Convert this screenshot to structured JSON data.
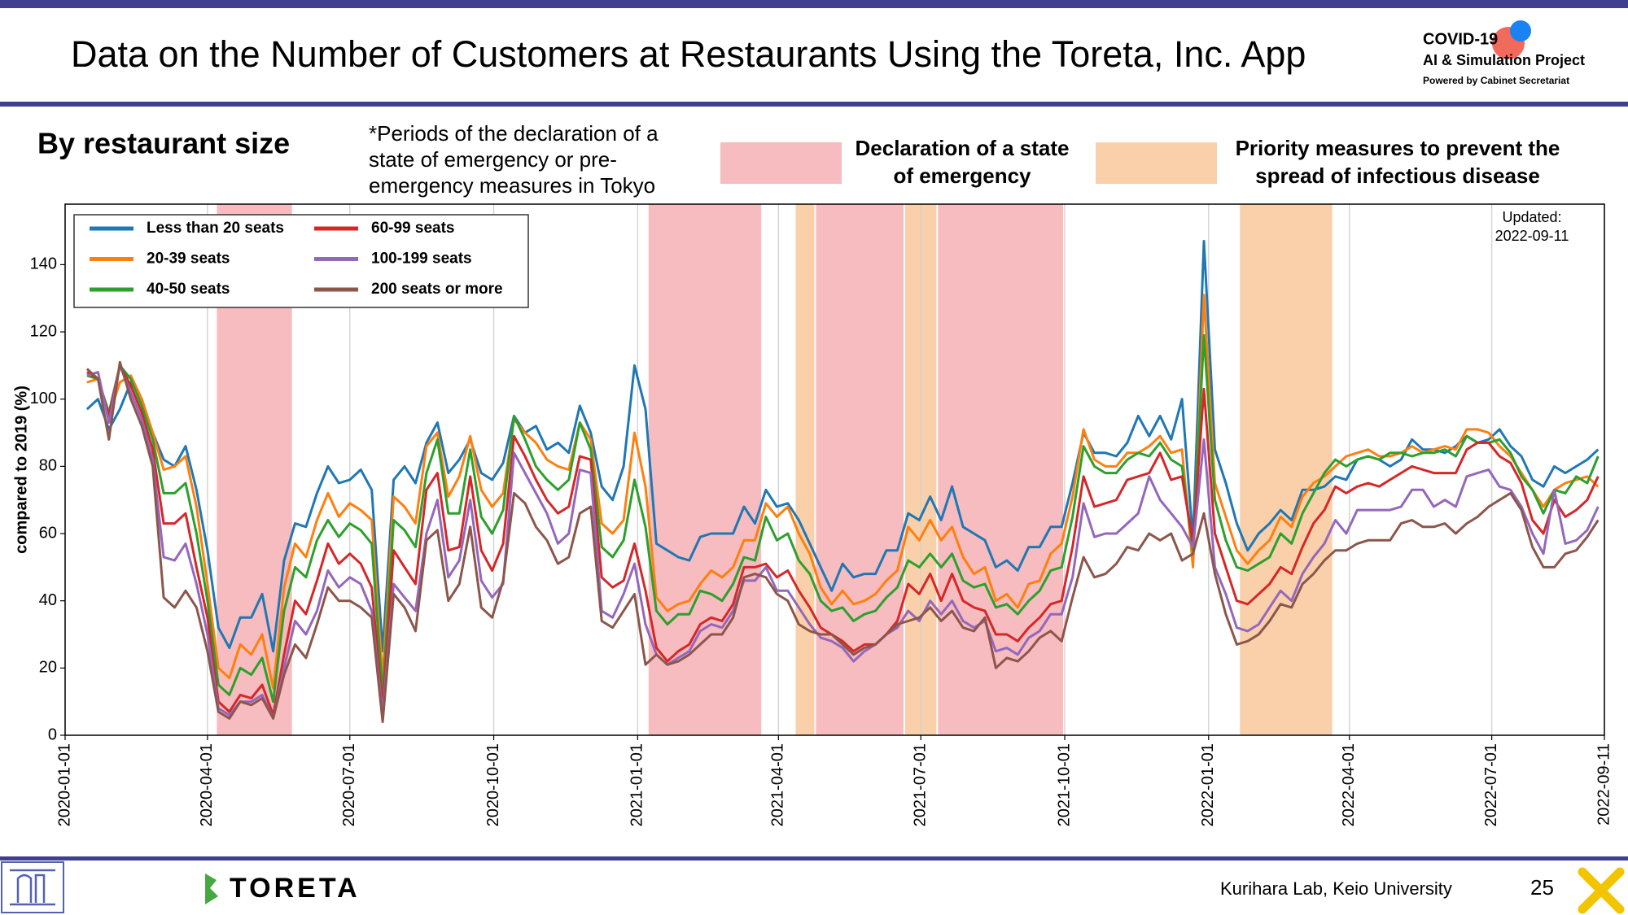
{
  "header": {
    "title": "Data on the Number of Customers at Restaurants Using the Toreta, Inc. App",
    "logo_lines": [
      "COVID-19",
      "AI & Simulation Project",
      "Powered by Cabinet Secretariat"
    ],
    "section": "By restaurant size",
    "note_lines": [
      "*Periods of the declaration of a",
      "state of emergency or pre-",
      "emergency measures in Tokyo"
    ]
  },
  "chart_data": {
    "type": "line",
    "ylabel": "compared to 2019 (%)",
    "updated_lines": [
      "Updated:",
      "2022-09-11"
    ],
    "legend": "upper left",
    "grid": "x",
    "xlim": [
      "2020-01-01",
      "2022-09-11"
    ],
    "xticks": [
      "2020-01-01",
      "2020-04-01",
      "2020-07-01",
      "2020-10-01",
      "2021-01-01",
      "2021-04-01",
      "2021-07-01",
      "2021-10-01",
      "2022-01-01",
      "2022-04-01",
      "2022-07-01",
      "2022-09-11"
    ],
    "ylim": [
      0,
      158
    ],
    "yticks": [
      0,
      20,
      40,
      60,
      80,
      100,
      120,
      140
    ],
    "bands": [
      {
        "name_lines": [
          "Declaration of a state",
          "of emergency"
        ],
        "color": "#f6bcbf",
        "periods": [
          [
            "2020-04-07",
            "2020-05-25"
          ],
          [
            "2021-01-08",
            "2021-03-21"
          ],
          [
            "2021-04-25",
            "2021-06-20"
          ],
          [
            "2021-07-12",
            "2021-09-30"
          ]
        ]
      },
      {
        "name_lines": [
          "Priority measures to prevent the",
          "spread of infectious disease"
        ],
        "color": "#f9d0aa",
        "periods": [
          [
            "2021-04-12",
            "2021-04-24"
          ],
          [
            "2021-06-21",
            "2021-07-11"
          ],
          [
            "2022-01-21",
            "2022-03-21"
          ]
        ]
      }
    ],
    "x": [
      "2020-01-15",
      "2020-01-22",
      "2020-01-29",
      "2020-02-05",
      "2020-02-12",
      "2020-02-19",
      "2020-02-26",
      "2020-03-04",
      "2020-03-11",
      "2020-03-18",
      "2020-03-25",
      "2020-04-01",
      "2020-04-08",
      "2020-04-15",
      "2020-04-22",
      "2020-04-29",
      "2020-05-06",
      "2020-05-13",
      "2020-05-20",
      "2020-05-27",
      "2020-06-03",
      "2020-06-10",
      "2020-06-17",
      "2020-06-24",
      "2020-07-01",
      "2020-07-08",
      "2020-07-15",
      "2020-07-22",
      "2020-07-29",
      "2020-08-05",
      "2020-08-12",
      "2020-08-19",
      "2020-08-26",
      "2020-09-02",
      "2020-09-09",
      "2020-09-16",
      "2020-09-23",
      "2020-09-30",
      "2020-10-07",
      "2020-10-14",
      "2020-10-21",
      "2020-10-28",
      "2020-11-04",
      "2020-11-11",
      "2020-11-18",
      "2020-11-25",
      "2020-12-02",
      "2020-12-09",
      "2020-12-16",
      "2020-12-23",
      "2020-12-30",
      "2021-01-06",
      "2021-01-13",
      "2021-01-20",
      "2021-01-27",
      "2021-02-03",
      "2021-02-10",
      "2021-02-17",
      "2021-02-24",
      "2021-03-03",
      "2021-03-10",
      "2021-03-17",
      "2021-03-24",
      "2021-03-31",
      "2021-04-07",
      "2021-04-14",
      "2021-04-21",
      "2021-04-28",
      "2021-05-05",
      "2021-05-12",
      "2021-05-19",
      "2021-05-26",
      "2021-06-02",
      "2021-06-09",
      "2021-06-16",
      "2021-06-23",
      "2021-06-30",
      "2021-07-07",
      "2021-07-14",
      "2021-07-21",
      "2021-07-28",
      "2021-08-04",
      "2021-08-11",
      "2021-08-18",
      "2021-08-25",
      "2021-09-01",
      "2021-09-08",
      "2021-09-15",
      "2021-09-22",
      "2021-09-29",
      "2021-10-06",
      "2021-10-13",
      "2021-10-20",
      "2021-10-27",
      "2021-11-03",
      "2021-11-10",
      "2021-11-17",
      "2021-11-24",
      "2021-12-01",
      "2021-12-08",
      "2021-12-15",
      "2021-12-22",
      "2021-12-29",
      "2022-01-05",
      "2022-01-12",
      "2022-01-19",
      "2022-01-26",
      "2022-02-02",
      "2022-02-09",
      "2022-02-16",
      "2022-02-23",
      "2022-03-02",
      "2022-03-09",
      "2022-03-16",
      "2022-03-23",
      "2022-03-30",
      "2022-04-06",
      "2022-04-13",
      "2022-04-20",
      "2022-04-27",
      "2022-05-04",
      "2022-05-11",
      "2022-05-18",
      "2022-05-25",
      "2022-06-01",
      "2022-06-08",
      "2022-06-15",
      "2022-06-22",
      "2022-06-29",
      "2022-07-06",
      "2022-07-13",
      "2022-07-20",
      "2022-07-27",
      "2022-08-03",
      "2022-08-10",
      "2022-08-17",
      "2022-08-24",
      "2022-08-31",
      "2022-09-07"
    ],
    "series": [
      {
        "name": "Less than 20 seats",
        "color": "#1f77b4",
        "values": [
          97,
          100,
          91,
          97,
          105,
          100,
          90,
          82,
          80,
          86,
          73,
          55,
          32,
          26,
          35,
          35,
          42,
          25,
          52,
          63,
          62,
          72,
          80,
          75,
          76,
          79,
          73,
          25,
          76,
          80,
          75,
          87,
          93,
          78,
          82,
          88,
          78,
          76,
          81,
          95,
          90,
          92,
          85,
          87,
          84,
          98,
          90,
          74,
          70,
          80,
          110,
          97,
          57,
          55,
          53,
          52,
          59,
          60,
          60,
          60,
          68,
          63,
          73,
          68,
          69,
          64,
          57,
          50,
          43,
          51,
          47,
          48,
          48,
          55,
          55,
          66,
          64,
          71,
          64,
          74,
          62,
          60,
          58,
          50,
          52,
          49,
          56,
          56,
          62,
          62,
          75,
          90,
          84,
          84,
          83,
          87,
          95,
          89,
          95,
          88,
          100,
          58,
          147,
          85,
          75,
          63,
          55,
          60,
          63,
          67,
          64,
          73,
          73,
          74,
          77,
          76,
          82,
          83,
          82,
          80,
          82,
          88,
          85,
          85,
          84,
          86,
          89,
          87,
          88,
          91,
          86,
          83,
          76,
          74,
          80,
          78,
          80,
          82,
          85
        ]
      },
      {
        "name": "20-39 seats",
        "color": "#ff7f0e",
        "values": [
          105,
          106,
          95,
          105,
          107,
          100,
          90,
          79,
          80,
          83,
          68,
          45,
          20,
          17,
          27,
          24,
          30,
          14,
          44,
          57,
          53,
          64,
          72,
          65,
          69,
          67,
          64,
          17,
          71,
          68,
          63,
          86,
          90,
          71,
          77,
          89,
          73,
          68,
          72,
          94,
          90,
          87,
          82,
          80,
          79,
          93,
          88,
          63,
          60,
          64,
          90,
          74,
          41,
          37,
          39,
          40,
          45,
          49,
          47,
          50,
          58,
          58,
          69,
          65,
          68,
          60,
          54,
          44,
          39,
          43,
          39,
          40,
          42,
          46,
          49,
          62,
          58,
          64,
          58,
          62,
          53,
          48,
          50,
          40,
          42,
          38,
          45,
          46,
          54,
          57,
          71,
          91,
          82,
          80,
          80,
          84,
          84,
          86,
          89,
          84,
          85,
          50,
          131,
          75,
          65,
          55,
          51,
          55,
          58,
          65,
          62,
          71,
          75,
          77,
          80,
          83,
          84,
          85,
          83,
          83,
          84,
          86,
          84,
          85,
          86,
          85,
          91,
          91,
          90,
          86,
          83,
          78,
          73,
          68,
          73,
          75,
          76,
          77,
          74
        ]
      },
      {
        "name": "40-50 seats",
        "color": "#2ca02c",
        "values": [
          107,
          106,
          96,
          110,
          106,
          98,
          88,
          72,
          72,
          75,
          60,
          40,
          15,
          12,
          20,
          18,
          23,
          10,
          37,
          50,
          47,
          58,
          64,
          59,
          63,
          61,
          57,
          12,
          64,
          61,
          56,
          78,
          88,
          66,
          66,
          85,
          65,
          60,
          67,
          95,
          88,
          80,
          76,
          73,
          76,
          93,
          85,
          56,
          53,
          58,
          76,
          62,
          37,
          33,
          36,
          36,
          43,
          42,
          40,
          45,
          53,
          52,
          65,
          58,
          60,
          52,
          48,
          40,
          37,
          38,
          34,
          36,
          37,
          41,
          44,
          52,
          50,
          54,
          50,
          54,
          46,
          44,
          45,
          38,
          39,
          36,
          40,
          43,
          49,
          50,
          65,
          86,
          80,
          78,
          78,
          82,
          84,
          83,
          87,
          82,
          80,
          55,
          119,
          70,
          58,
          50,
          49,
          51,
          53,
          60,
          57,
          66,
          72,
          78,
          82,
          80,
          82,
          83,
          82,
          84,
          84,
          83,
          84,
          84,
          85,
          83,
          89,
          87,
          87,
          88,
          84,
          77,
          73,
          66,
          73,
          72,
          77,
          75,
          83
        ]
      },
      {
        "name": "60-99 seats",
        "color": "#d62728",
        "values": [
          108,
          106,
          95,
          110,
          104,
          96,
          85,
          63,
          63,
          66,
          50,
          35,
          10,
          7,
          12,
          11,
          15,
          6,
          24,
          40,
          36,
          46,
          57,
          51,
          54,
          51,
          44,
          8,
          55,
          50,
          45,
          73,
          78,
          55,
          56,
          77,
          55,
          49,
          57,
          89,
          83,
          76,
          70,
          66,
          68,
          83,
          82,
          47,
          44,
          46,
          57,
          43,
          26,
          22,
          25,
          27,
          33,
          35,
          34,
          39,
          50,
          50,
          51,
          47,
          49,
          43,
          38,
          32,
          30,
          28,
          25,
          27,
          27,
          30,
          34,
          45,
          42,
          48,
          40,
          48,
          40,
          38,
          37,
          30,
          30,
          28,
          32,
          35,
          39,
          40,
          56,
          77,
          68,
          69,
          70,
          76,
          77,
          78,
          84,
          76,
          77,
          57,
          103,
          60,
          50,
          40,
          39,
          42,
          45,
          50,
          48,
          56,
          63,
          67,
          74,
          72,
          74,
          75,
          74,
          76,
          78,
          80,
          79,
          78,
          78,
          78,
          85,
          87,
          87,
          83,
          81,
          75,
          64,
          60,
          70,
          65,
          67,
          70,
          77
        ]
      },
      {
        "name": "100-199 seats",
        "color": "#9467bd",
        "values": [
          107,
          108,
          93,
          110,
          102,
          94,
          82,
          53,
          52,
          57,
          45,
          30,
          8,
          6,
          10,
          10,
          12,
          5,
          20,
          34,
          30,
          37,
          49,
          44,
          47,
          45,
          37,
          6,
          45,
          41,
          37,
          60,
          70,
          47,
          52,
          70,
          46,
          41,
          45,
          84,
          78,
          72,
          66,
          57,
          60,
          79,
          78,
          37,
          35,
          42,
          51,
          33,
          24,
          21,
          23,
          25,
          31,
          33,
          32,
          37,
          46,
          46,
          50,
          43,
          43,
          38,
          33,
          29,
          28,
          26,
          22,
          25,
          27,
          30,
          32,
          37,
          34,
          40,
          36,
          40,
          34,
          32,
          34,
          25,
          26,
          24,
          29,
          31,
          36,
          36,
          47,
          69,
          59,
          60,
          60,
          63,
          66,
          77,
          70,
          66,
          62,
          56,
          88,
          50,
          42,
          32,
          31,
          33,
          38,
          43,
          40,
          48,
          53,
          57,
          64,
          60,
          67,
          67,
          67,
          67,
          68,
          73,
          73,
          68,
          70,
          68,
          77,
          78,
          79,
          74,
          73,
          68,
          60,
          54,
          73,
          57,
          58,
          61,
          68
        ]
      },
      {
        "name": "200 seats or more",
        "color": "#8c564b",
        "values": [
          109,
          106,
          88,
          111,
          100,
          92,
          80,
          41,
          38,
          43,
          38,
          25,
          7,
          5,
          10,
          9,
          11,
          5,
          18,
          27,
          23,
          33,
          44,
          40,
          40,
          38,
          35,
          4,
          42,
          38,
          31,
          58,
          61,
          40,
          45,
          62,
          38,
          35,
          46,
          72,
          69,
          62,
          58,
          51,
          53,
          66,
          68,
          34,
          32,
          37,
          42,
          21,
          24,
          21,
          22,
          24,
          27,
          30,
          30,
          35,
          47,
          48,
          47,
          42,
          40,
          33,
          31,
          30,
          30,
          27,
          24,
          26,
          27,
          30,
          33,
          34,
          35,
          38,
          34,
          37,
          32,
          31,
          35,
          20,
          23,
          22,
          25,
          29,
          31,
          28,
          41,
          53,
          47,
          48,
          51,
          56,
          55,
          60,
          58,
          60,
          52,
          54,
          66,
          48,
          36,
          27,
          28,
          30,
          34,
          39,
          38,
          45,
          48,
          52,
          55,
          55,
          57,
          58,
          58,
          58,
          63,
          64,
          62,
          62,
          63,
          60,
          63,
          65,
          68,
          70,
          72,
          67,
          56,
          50,
          50,
          54,
          55,
          59,
          64
        ]
      }
    ]
  },
  "footer": {
    "brand": "TORETA",
    "credit": "Kurihara Lab, Keio University",
    "page": "25"
  }
}
